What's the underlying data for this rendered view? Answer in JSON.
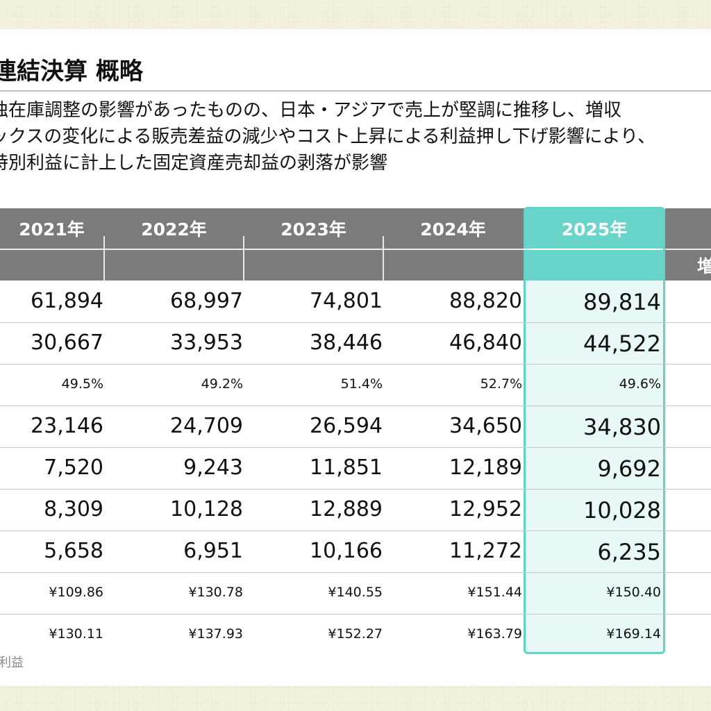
{
  "title": "連結決算 概略",
  "summary_lines": [
    "独在庫調整の影響があったものの、日本・アジアで売上が堅調に推移し、増収",
    "ックスの変化による販売差益の減少やコスト上昇による利益押し下げ影響により、",
    "特別利益に計上した固定資産売却益の剥落が影響"
  ],
  "columns": [
    "2021年",
    "2022年",
    "2023年",
    "2024年",
    "2025年"
  ],
  "extra_header": "増",
  "rows": [
    {
      "size": "big",
      "values": [
        "61,894",
        "68,997",
        "74,801",
        "88,820",
        "89,814"
      ]
    },
    {
      "size": "big",
      "values": [
        "30,667",
        "33,953",
        "38,446",
        "46,840",
        "44,522"
      ]
    },
    {
      "size": "small",
      "values": [
        "49.5%",
        "49.2%",
        "51.4%",
        "52.7%",
        "49.6%"
      ]
    },
    {
      "size": "big",
      "values": [
        "23,146",
        "24,709",
        "26,594",
        "34,650",
        "34,830"
      ]
    },
    {
      "size": "big",
      "values": [
        "7,520",
        "9,243",
        "11,851",
        "12,189",
        "9,692"
      ]
    },
    {
      "size": "big",
      "values": [
        "8,309",
        "10,128",
        "12,889",
        "12,952",
        "10,028"
      ]
    },
    {
      "size": "big",
      "values": [
        "5,658",
        "6,951",
        "10,166",
        "11,272",
        "6,235"
      ]
    },
    {
      "size": "small",
      "values": [
        "¥109.86",
        "¥130.78",
        "¥140.55",
        "¥151.44",
        "¥150.40"
      ]
    },
    {
      "size": "small",
      "values": [
        "¥130.11",
        "¥137.93",
        "¥152.27",
        "¥163.79",
        "¥169.14"
      ]
    }
  ],
  "footnote": "利益",
  "colors": {
    "header": "#7b7b7b",
    "highlight": "#69d4ca",
    "background": "#f3f0dc"
  }
}
